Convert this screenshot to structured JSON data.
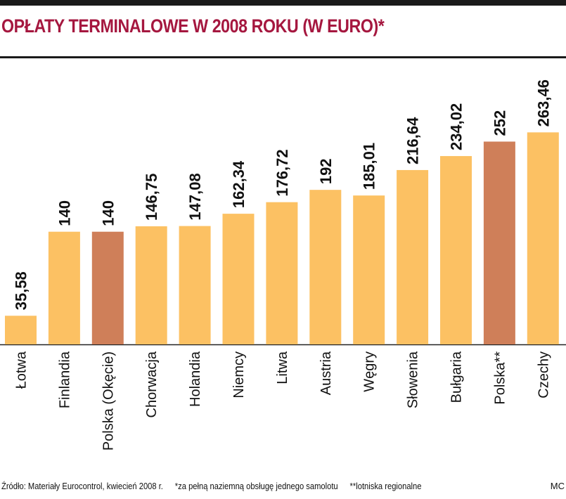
{
  "header": {
    "title": "OPŁATY TERMINALOWE W 2008 ROKU (W EURO)*"
  },
  "chart_data": {
    "type": "bar",
    "title": "OPŁATY TERMINALOWE W 2008 ROKU (W EURO)*",
    "xlabel": "",
    "ylabel": "",
    "ylim": [
      0,
      290
    ],
    "grid": false,
    "categories": [
      "Łotwa",
      "Finlandia",
      "Polska (Okęcie)",
      "Chorwacja",
      "Holandia",
      "Niemcy",
      "Litwa",
      "Austria",
      "Węgry",
      "Słowenia",
      "Bułgaria",
      "Polska**",
      "Czechy"
    ],
    "values": [
      35.58,
      140,
      140,
      146.75,
      147.08,
      162.34,
      176.72,
      192,
      185.01,
      216.64,
      234.02,
      252,
      263.46
    ],
    "value_labels": [
      "35,58",
      "140",
      "140",
      "146,75",
      "147,08",
      "162,34",
      "176,72",
      "192",
      "185,01",
      "216,64",
      "234,02",
      "252",
      "263,46"
    ],
    "highlighted": [
      false,
      false,
      true,
      false,
      false,
      false,
      false,
      false,
      false,
      false,
      false,
      true,
      false
    ],
    "colors": {
      "bar": "#fcc163",
      "highlight": "#cf7f59",
      "title": "#a5173f",
      "text": "#111111"
    }
  },
  "footer": {
    "source": "Źródło: Materiały Eurocontrol, kwiecień 2008 r.",
    "note1": "*za pełną naziemną obsługę jednego samolotu",
    "note2": "**lotniska regionalne",
    "credit": "MC"
  }
}
